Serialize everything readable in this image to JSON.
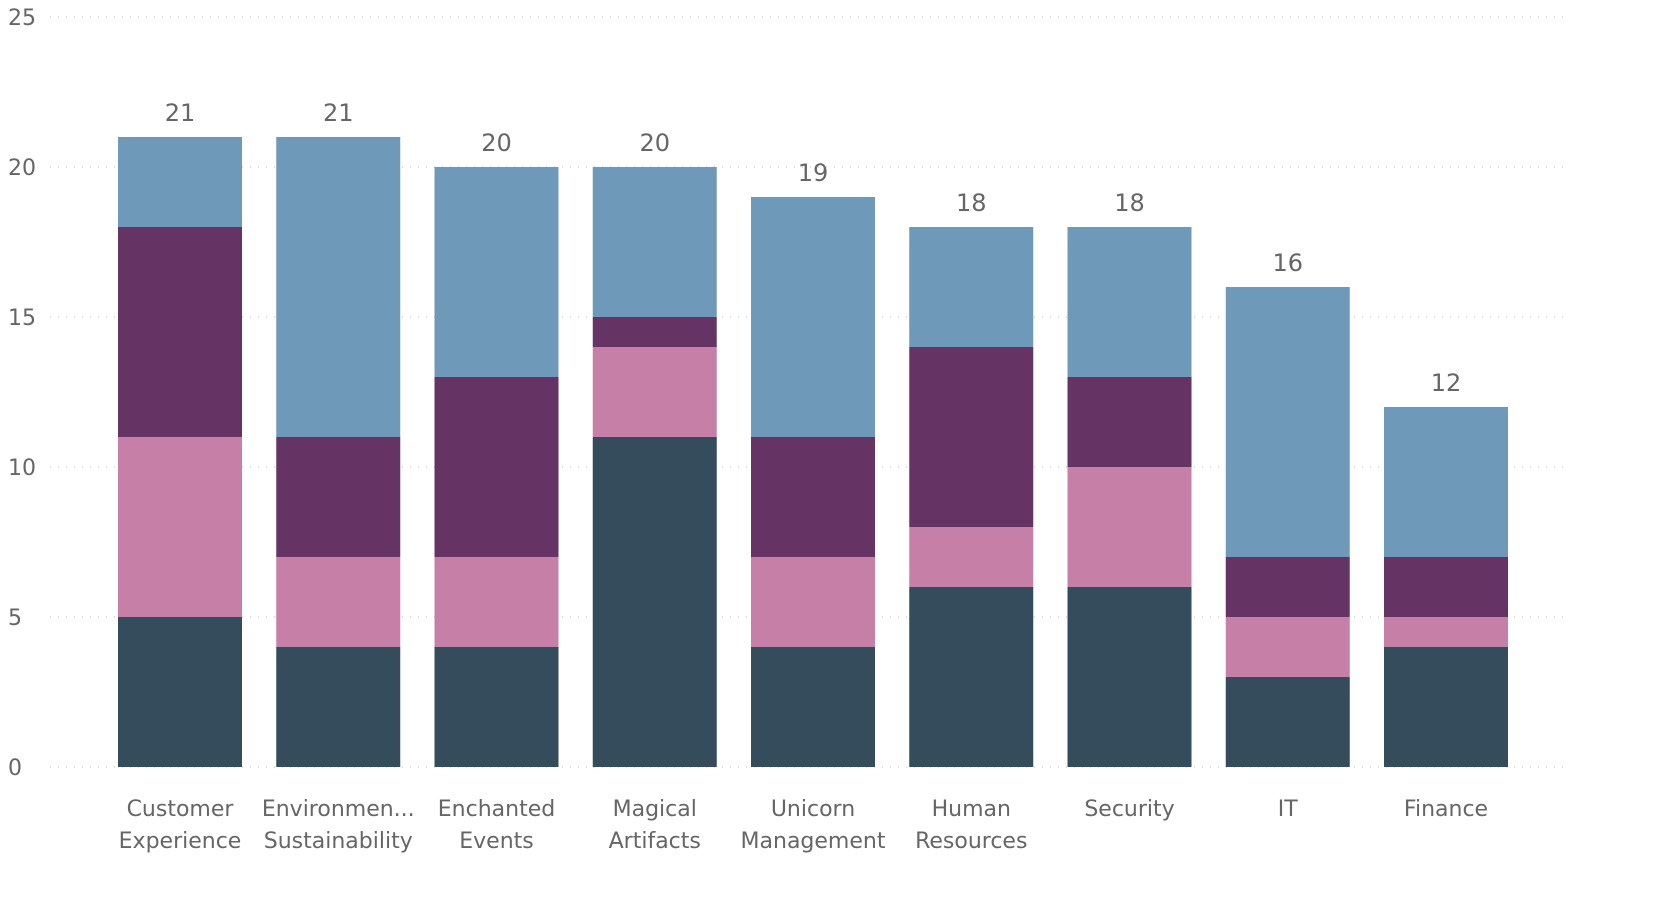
{
  "chart_data": {
    "type": "bar",
    "stacked": true,
    "title": "",
    "xlabel": "",
    "ylabel": "",
    "ylim": [
      0,
      25
    ],
    "yticks": [
      0,
      5,
      10,
      15,
      20,
      25
    ],
    "grid": true,
    "categories": [
      [
        "Customer",
        "Experience"
      ],
      [
        "Environmen...",
        "Sustainability"
      ],
      [
        "Enchanted",
        "Events"
      ],
      [
        "Magical",
        "Artifacts"
      ],
      [
        "Unicorn",
        "Management"
      ],
      [
        "Human",
        "Resources"
      ],
      [
        "Security"
      ],
      [
        "IT"
      ],
      [
        "Finance"
      ]
    ],
    "series": [
      {
        "color": "#344c5c",
        "values": [
          5,
          4,
          4,
          11,
          4,
          6,
          6,
          3,
          4
        ]
      },
      {
        "color": "#c67fa6",
        "values": [
          6,
          3,
          3,
          3,
          3,
          2,
          4,
          2,
          1
        ]
      },
      {
        "color": "#663365",
        "values": [
          7,
          4,
          6,
          1,
          4,
          6,
          3,
          2,
          2
        ]
      },
      {
        "color": "#6f99b8",
        "values": [
          3,
          10,
          7,
          5,
          8,
          4,
          5,
          9,
          5
        ]
      }
    ],
    "totals": [
      "21",
      "21",
      "20",
      "20",
      "19",
      "18",
      "18",
      "16",
      "12"
    ],
    "colors": {
      "text": "#666666",
      "grid": "#c8c8c8"
    }
  }
}
